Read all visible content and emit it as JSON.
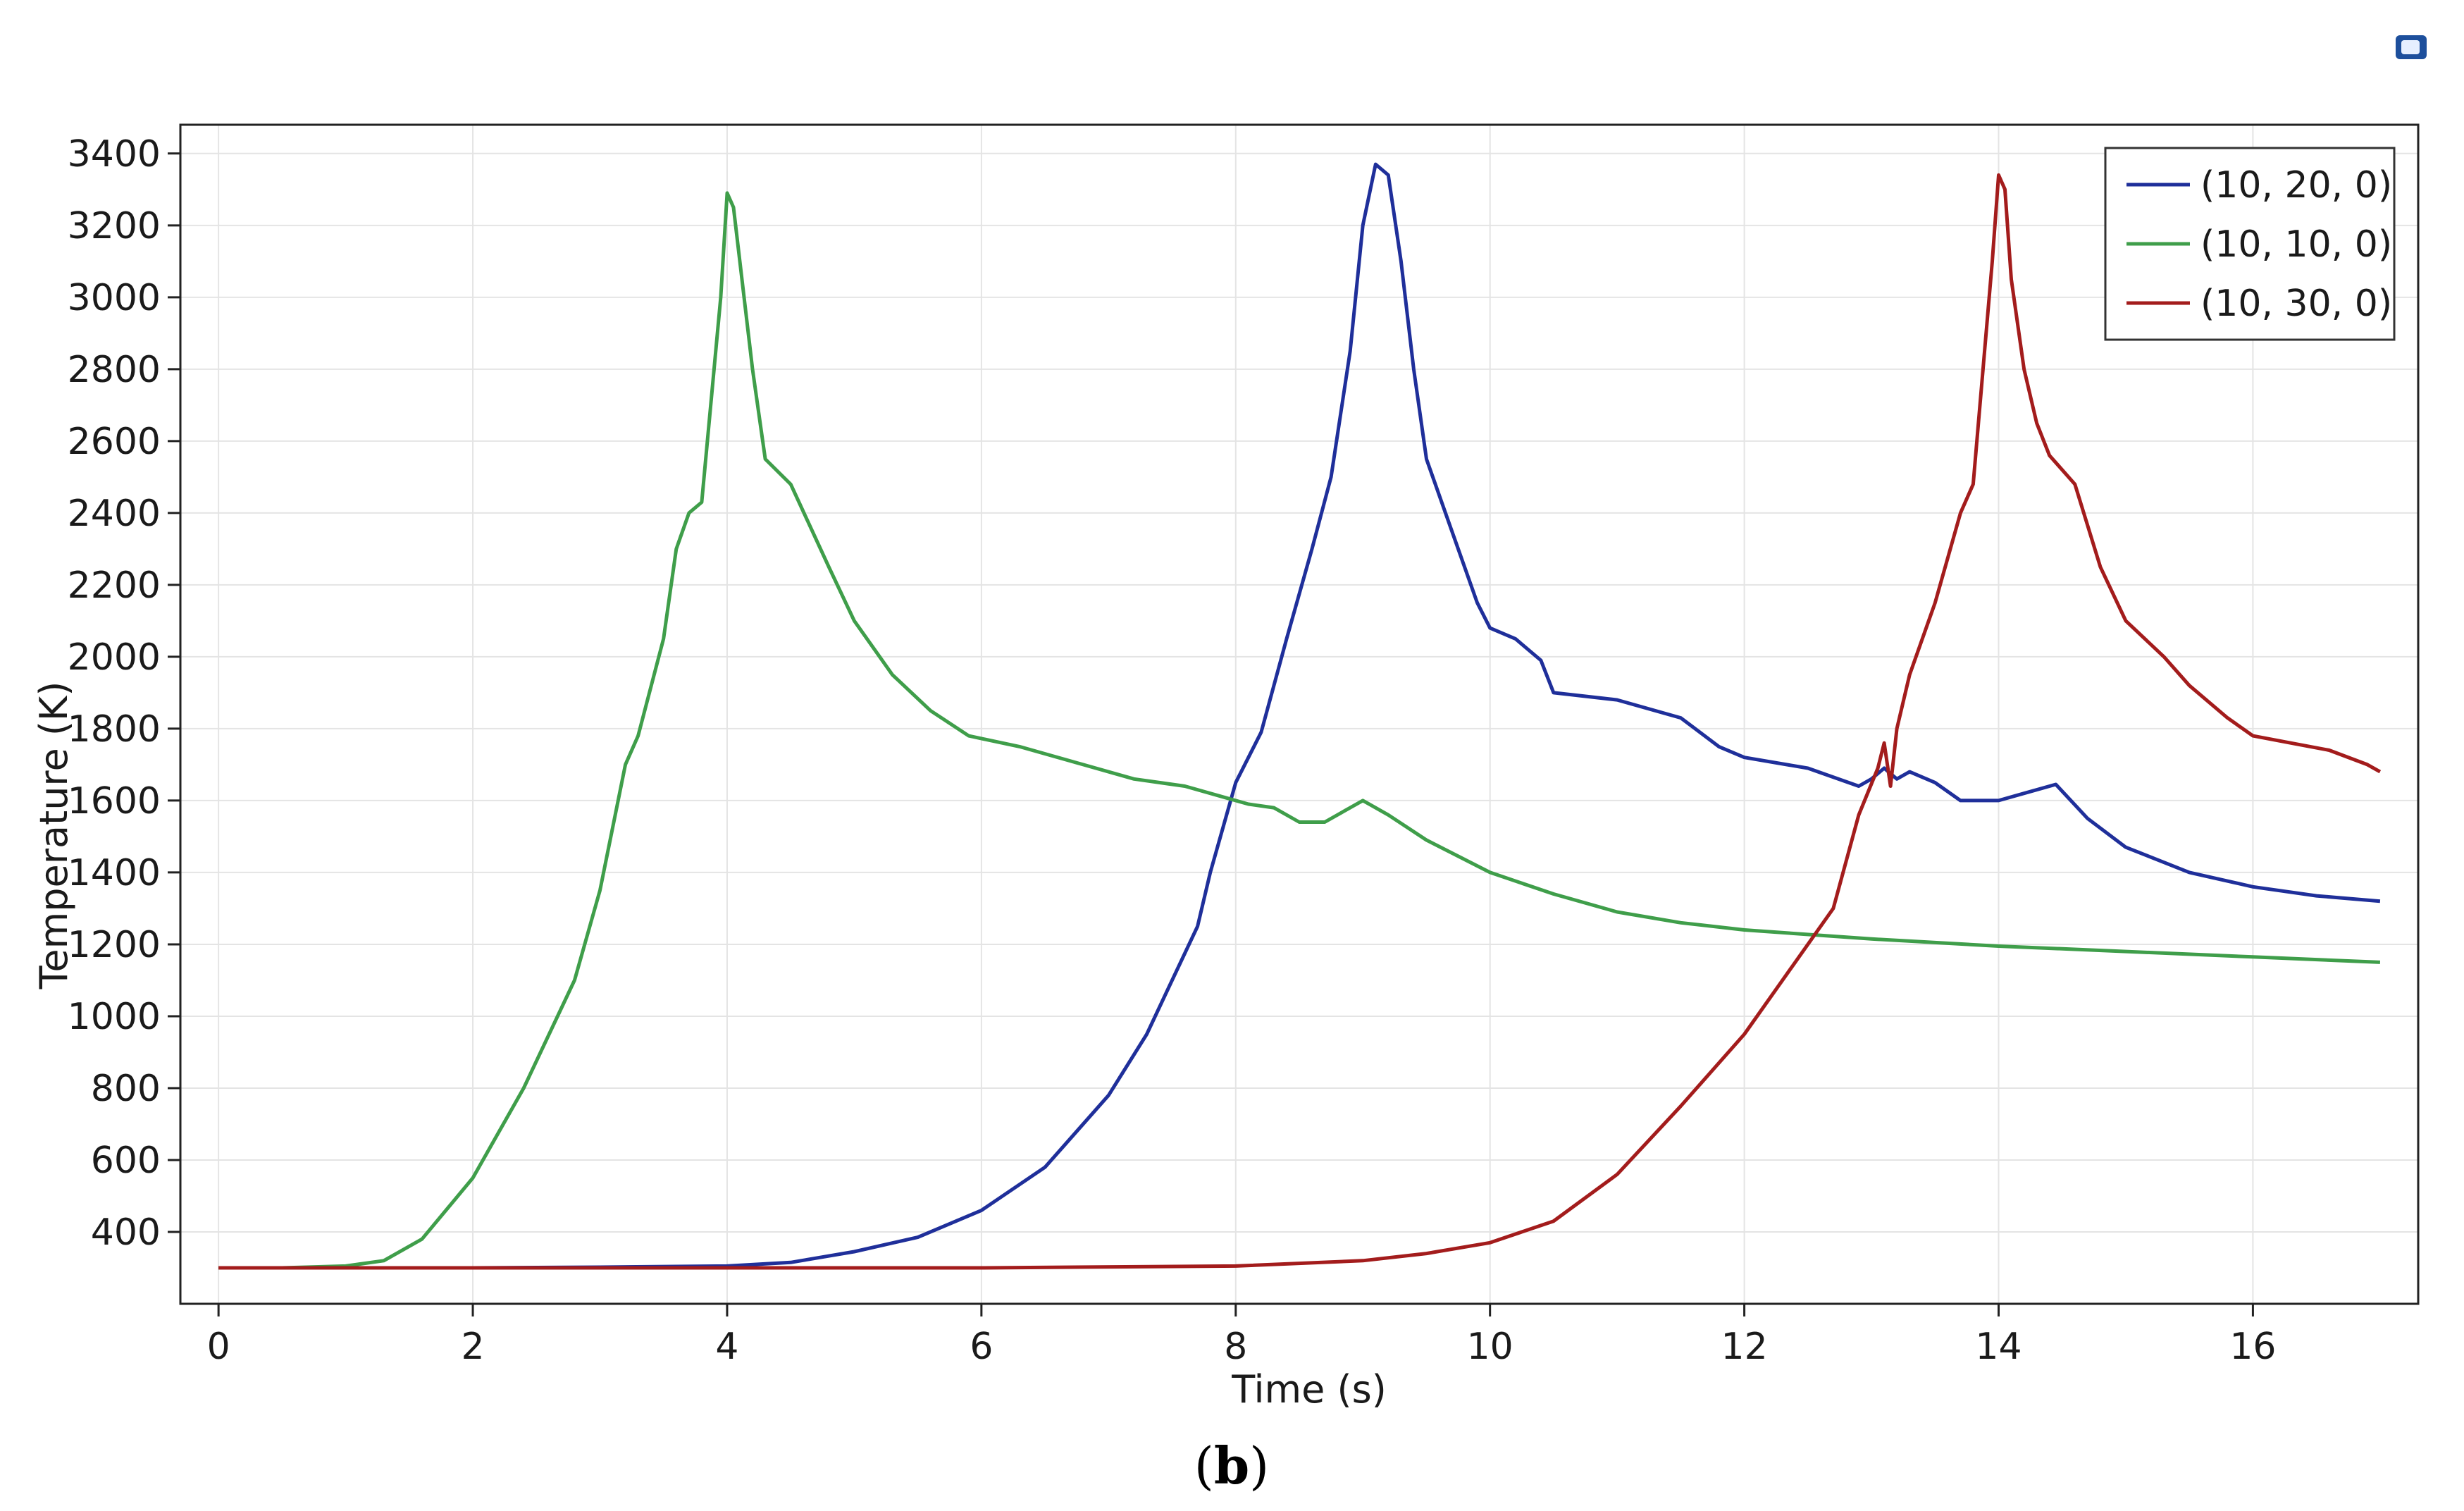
{
  "caption": {
    "open": "(",
    "letter": "b",
    "close": ")"
  },
  "chart_data": {
    "type": "line",
    "xlabel": "Time (s)",
    "ylabel": "Temperature (K)",
    "xlim": [
      -0.3,
      17.3
    ],
    "ylim": [
      200,
      3480
    ],
    "xticks": [
      0,
      2,
      4,
      6,
      8,
      10,
      12,
      14,
      16
    ],
    "yticks": [
      400,
      600,
      800,
      1000,
      1200,
      1400,
      1600,
      1800,
      2000,
      2200,
      2400,
      2600,
      2800,
      3000,
      3200,
      3400
    ],
    "grid": true,
    "legend_position": "top-right",
    "series": [
      {
        "name": "(10, 20, 0)",
        "color": "#1f2f9a",
        "x": [
          0,
          1,
          2,
          3,
          4,
          4.5,
          5,
          5.5,
          6,
          6.5,
          7,
          7.3,
          7.5,
          7.7,
          7.8,
          8,
          8.2,
          8.4,
          8.6,
          8.75,
          8.9,
          9.0,
          9.1,
          9.2,
          9.3,
          9.4,
          9.5,
          9.7,
          9.9,
          10.0,
          10.2,
          10.4,
          10.5,
          11,
          11.5,
          11.8,
          12,
          12.5,
          12.9,
          13.0,
          13.1,
          13.2,
          13.3,
          13.5,
          13.7,
          14.0,
          14.2,
          14.45,
          14.7,
          15,
          15.5,
          16,
          16.5,
          17
        ],
        "y": [
          300,
          300,
          300,
          302,
          305,
          315,
          345,
          385,
          460,
          580,
          780,
          950,
          1100,
          1250,
          1400,
          1650,
          1790,
          2050,
          2300,
          2500,
          2850,
          3200,
          3370,
          3340,
          3100,
          2800,
          2550,
          2350,
          2150,
          2080,
          2050,
          1990,
          1900,
          1880,
          1830,
          1750,
          1720,
          1690,
          1640,
          1660,
          1690,
          1660,
          1680,
          1650,
          1600,
          1600,
          1620,
          1645,
          1550,
          1470,
          1400,
          1360,
          1335,
          1320
        ]
      },
      {
        "name": "(10, 10, 0)",
        "color": "#3f9e4a",
        "x": [
          0,
          0.5,
          1,
          1.3,
          1.6,
          2,
          2.4,
          2.8,
          3.0,
          3.2,
          3.3,
          3.5,
          3.6,
          3.7,
          3.8,
          3.95,
          4.0,
          4.05,
          4.1,
          4.2,
          4.3,
          4.5,
          4.8,
          5.0,
          5.3,
          5.6,
          5.9,
          6.3,
          6.8,
          7.2,
          7.6,
          7.9,
          8.1,
          8.3,
          8.5,
          8.7,
          9.0,
          9.2,
          9.5,
          10,
          10.5,
          11,
          11.5,
          12,
          13,
          14,
          15,
          16,
          17
        ],
        "y": [
          300,
          300,
          305,
          320,
          380,
          550,
          800,
          1100,
          1350,
          1700,
          1780,
          2050,
          2300,
          2400,
          2430,
          3000,
          3290,
          3250,
          3100,
          2800,
          2550,
          2480,
          2250,
          2100,
          1950,
          1850,
          1780,
          1750,
          1700,
          1660,
          1640,
          1610,
          1590,
          1580,
          1540,
          1540,
          1600,
          1560,
          1490,
          1400,
          1340,
          1290,
          1260,
          1240,
          1215,
          1195,
          1180,
          1165,
          1150
        ]
      },
      {
        "name": "(10, 30, 0)",
        "color": "#a31c1c",
        "x": [
          0,
          2,
          4,
          6,
          8,
          9,
          9.5,
          10,
          10.5,
          11,
          11.5,
          12,
          12.4,
          12.7,
          12.9,
          13.05,
          13.1,
          13.15,
          13.2,
          13.3,
          13.5,
          13.7,
          13.8,
          13.95,
          14.0,
          14.05,
          14.1,
          14.2,
          14.3,
          14.4,
          14.6,
          14.8,
          15.0,
          15.3,
          15.5,
          15.8,
          16.0,
          16.3,
          16.6,
          16.9,
          17
        ],
        "y": [
          300,
          300,
          300,
          300,
          305,
          320,
          340,
          370,
          430,
          560,
          750,
          950,
          1150,
          1300,
          1560,
          1690,
          1760,
          1640,
          1800,
          1950,
          2150,
          2400,
          2480,
          3100,
          3340,
          3300,
          3050,
          2800,
          2650,
          2560,
          2480,
          2250,
          2100,
          2000,
          1920,
          1830,
          1780,
          1760,
          1740,
          1700,
          1680
        ]
      }
    ]
  }
}
